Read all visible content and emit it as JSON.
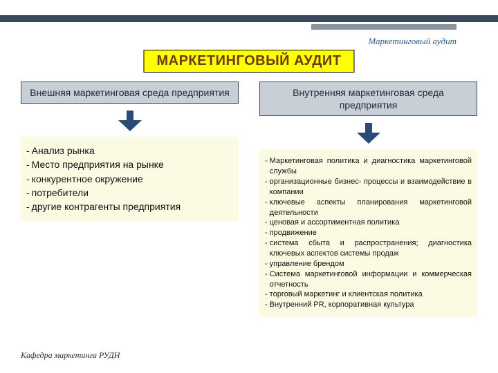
{
  "header": {
    "subtitle": "Маркетинговый аудит",
    "top_dark_bar_color": "#3b4a5a",
    "top_accent_bar_color": "#8a959f",
    "subtitle_color": "#2a5a8a"
  },
  "title": {
    "text": "МАРКЕТИНГОВЫЙ АУДИТ",
    "bg": "#ffff00",
    "color": "#6b3a1a",
    "fontsize": 20
  },
  "arrow": {
    "fill": "#2a4a7a"
  },
  "left": {
    "header": "Внешняя маркетинговая среда предприятия",
    "header_bg": "#c8cfd6",
    "items": [
      "Анализ рынка",
      " Место предприятия на рынке",
      " конкурентное окружение",
      " потребители",
      " другие контрагенты предприятия"
    ],
    "list_bg": "#fbfbe4",
    "fontsize": 14
  },
  "right": {
    "header": "Внутренняя маркетинговая среда предприятия",
    "header_bg": "#c8cfd6",
    "items": [
      "Маркетинговая политика и диагностика маркетинговой службы",
      " организационные бизнес- процессы и взаимодействие в компании",
      " ключевые аспекты планирования маркетинговой деятельности",
      " ценовая и ассортиментная политика",
      " продвижение",
      " система сбыта и распространения; диагностика ключевых аспектов системы продаж",
      " управление брендом",
      "Система маркетинговой информации и коммерческая отчетность",
      " торговый маркетинг и клиентская политика",
      "Внутренний  PR, корпоративная культура"
    ],
    "list_bg": "#fbfbe4",
    "fontsize": 11
  },
  "footer": {
    "text": "Кафедра маркетинга РУДН"
  }
}
